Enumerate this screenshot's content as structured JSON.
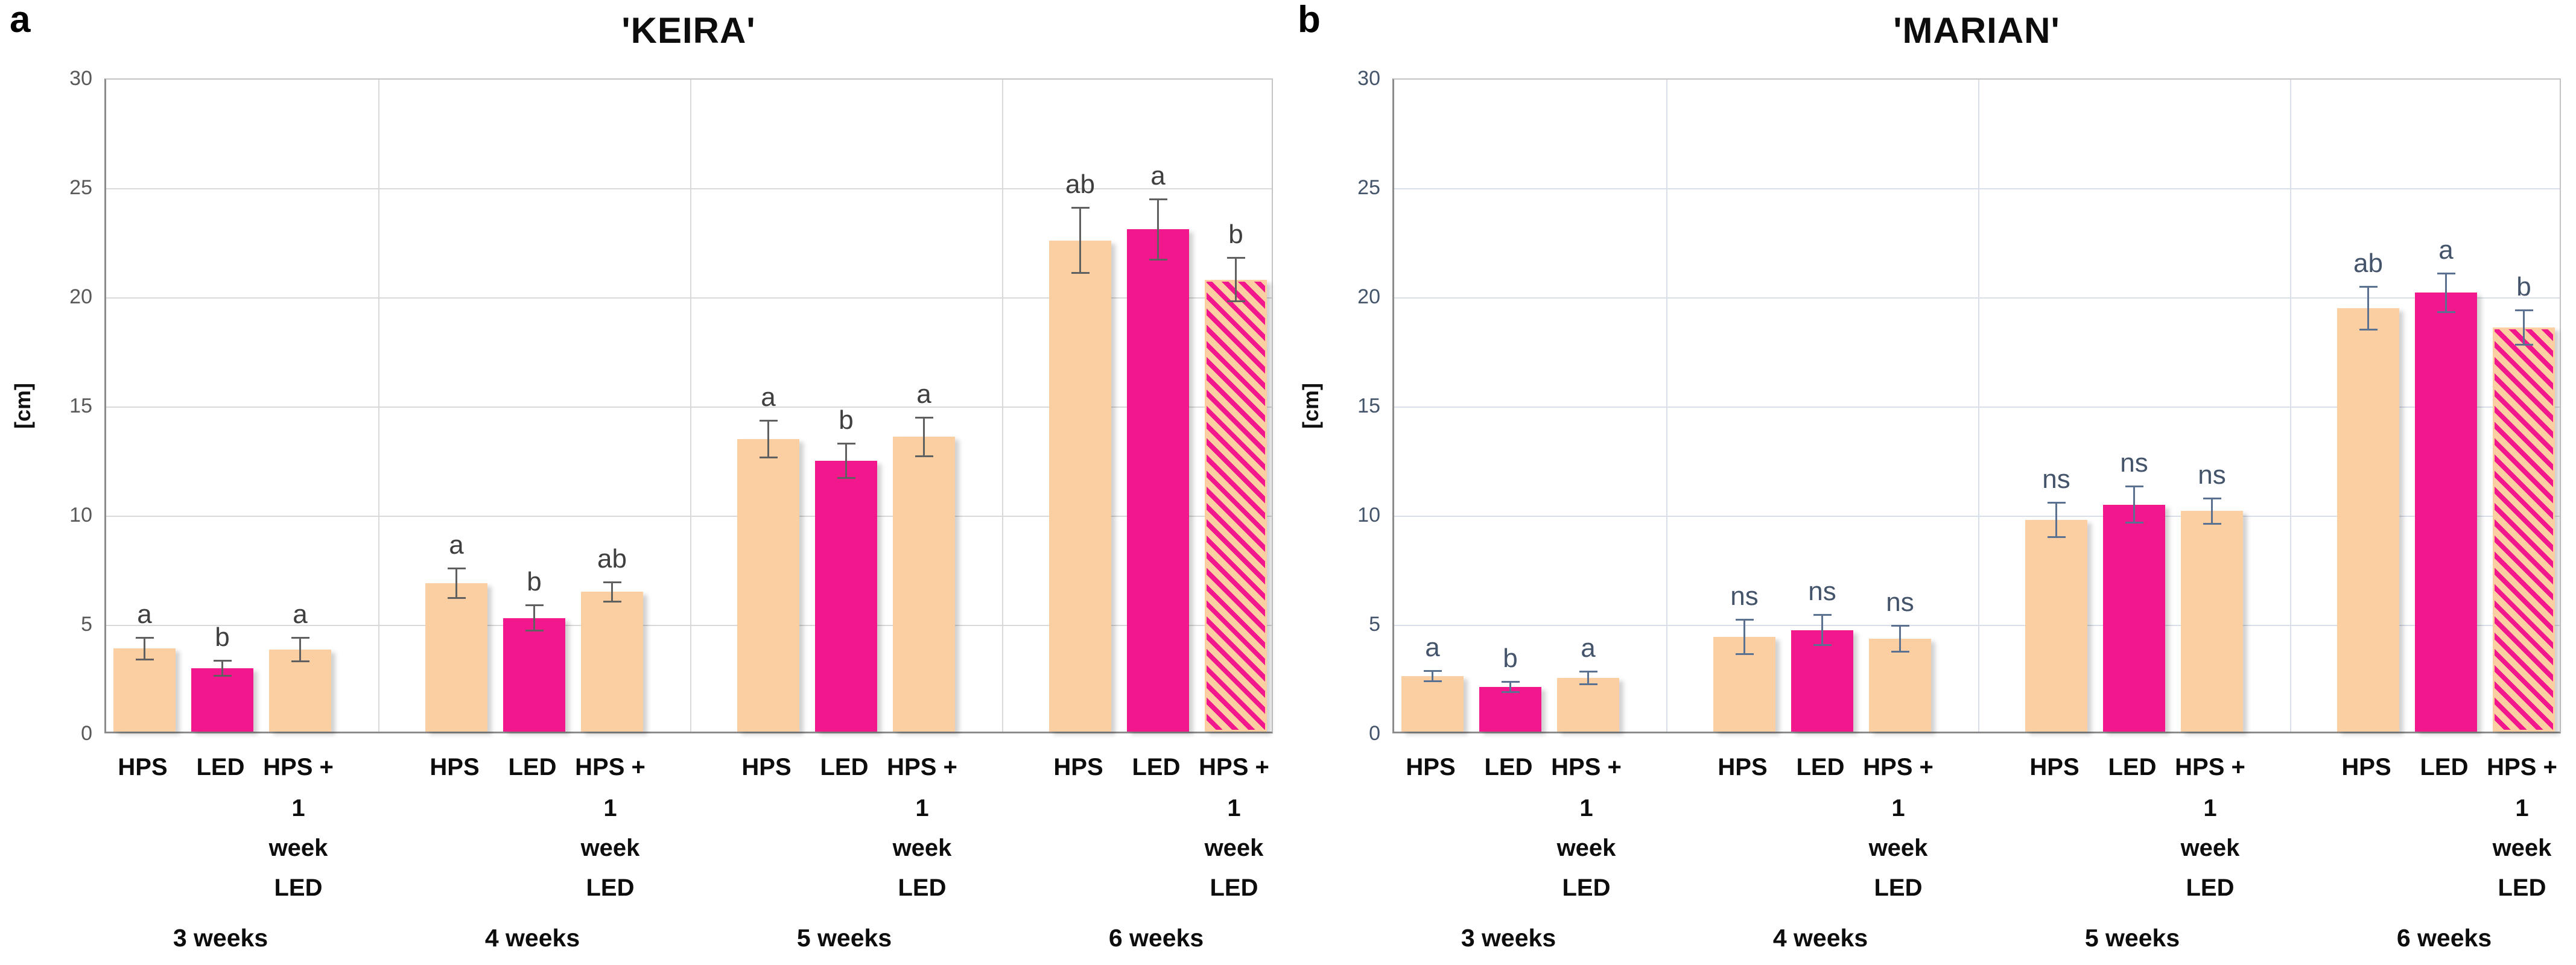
{
  "figure": {
    "background": "#ffffff",
    "panel_count": 2
  },
  "chart_data": [
    {
      "type": "bar",
      "corner_label": "a",
      "title": "'KEIRA'",
      "ylabel": "[cm]",
      "ylim": [
        0,
        30
      ],
      "yticks": [
        0,
        5,
        10,
        15,
        20,
        25,
        30
      ],
      "grid": true,
      "legend_position": "none",
      "group_labels": [
        "3 weeks",
        "4 weeks",
        "5 weeks",
        "6 weeks"
      ],
      "treatments": [
        "HPS",
        "LED",
        "HPS + 1 week LED"
      ],
      "treatment_label_lines": [
        [
          "HPS"
        ],
        [
          "LED"
        ],
        [
          "HPS +",
          "1",
          "week",
          "LED"
        ]
      ],
      "series": [
        {
          "name": "HPS",
          "fill": "peach",
          "values": [
            3.8,
            6.8,
            13.4,
            22.5
          ],
          "errors": [
            0.5,
            0.7,
            0.85,
            1.5
          ],
          "letters": [
            "a",
            "a",
            "a",
            "ab"
          ]
        },
        {
          "name": "LED",
          "fill": "magenta",
          "values": [
            2.9,
            5.2,
            12.4,
            23.0
          ],
          "errors": [
            0.35,
            0.6,
            0.8,
            1.4
          ],
          "letters": [
            "b",
            "b",
            "b",
            "a"
          ]
        },
        {
          "name": "HPS + 1 week LED",
          "fill": "peach",
          "fill_by_group": [
            "peach",
            "peach",
            "peach",
            "striped"
          ],
          "values": [
            3.75,
            6.4,
            13.5,
            20.7
          ],
          "errors": [
            0.55,
            0.45,
            0.9,
            1.0
          ],
          "letters": [
            "a",
            "ab",
            "a",
            "b"
          ]
        }
      ],
      "colors": {
        "peach": "#FCCFA2",
        "magenta": "#F2178C",
        "tick": "#595959",
        "letter": "#3F3F3F",
        "error": "#606060",
        "grid": "#D9D9D9",
        "border": "#C4C4C4",
        "axis": "#8C8C8C"
      }
    },
    {
      "type": "bar",
      "corner_label": "b",
      "title": "'MARIAN'",
      "ylabel": "[cm]",
      "ylim": [
        0,
        30
      ],
      "yticks": [
        0,
        5,
        10,
        15,
        20,
        25,
        30
      ],
      "grid": true,
      "legend_position": "none",
      "group_labels": [
        "3 weeks",
        "4 weeks",
        "5 weeks",
        "6 weeks"
      ],
      "treatments": [
        "HPS",
        "LED",
        "HPS + 1 week LED"
      ],
      "treatment_label_lines": [
        [
          "HPS"
        ],
        [
          "LED"
        ],
        [
          "HPS +",
          "1",
          "week",
          "LED"
        ]
      ],
      "series": [
        {
          "name": "HPS",
          "fill": "peach",
          "values": [
            2.55,
            4.35,
            9.7,
            19.4
          ],
          "errors": [
            0.25,
            0.8,
            0.8,
            1.0
          ],
          "letters": [
            "a",
            "ns",
            "ns",
            "ab"
          ]
        },
        {
          "name": "LED",
          "fill": "magenta",
          "values": [
            2.05,
            4.65,
            10.4,
            20.1
          ],
          "errors": [
            0.25,
            0.7,
            0.85,
            0.9
          ],
          "letters": [
            "b",
            "ns",
            "ns",
            "a"
          ]
        },
        {
          "name": "HPS + 1 week LED",
          "fill": "peach",
          "fill_by_group": [
            "peach",
            "peach",
            "peach",
            "striped"
          ],
          "values": [
            2.45,
            4.25,
            10.1,
            18.5
          ],
          "errors": [
            0.3,
            0.6,
            0.6,
            0.8
          ],
          "letters": [
            "a",
            "ns",
            "ns",
            "b"
          ]
        }
      ],
      "colors": {
        "peach": "#FCCFA2",
        "magenta": "#F2178C",
        "tick": "#44546A",
        "letter": "#44546A",
        "error": "#5B7191",
        "grid": "#D9DFE8",
        "border": "#C4C4C4",
        "axis": "#8C8C8C"
      }
    }
  ]
}
